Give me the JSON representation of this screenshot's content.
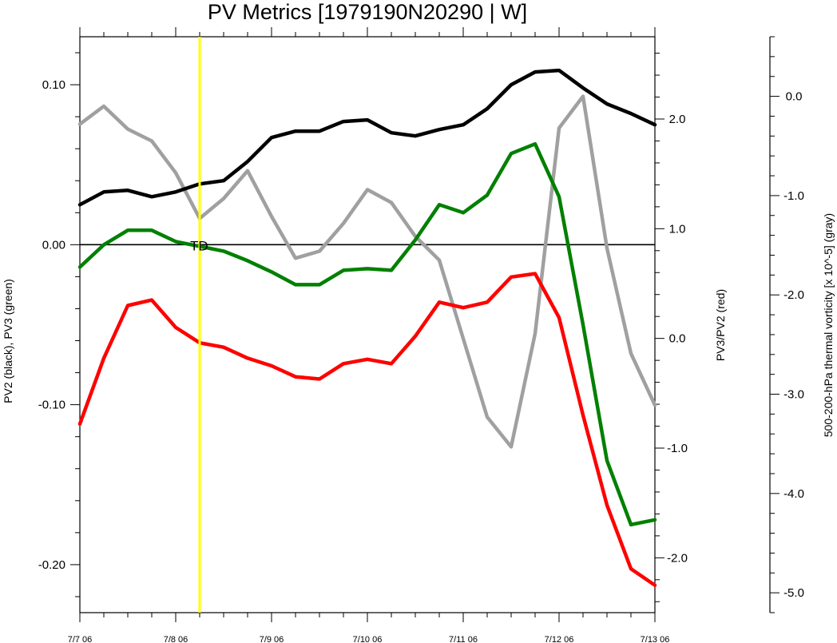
{
  "chart_data": {
    "type": "line",
    "title": "PV Metrics [1979190N20290 | W]",
    "x_tick_labels": [
      "7/7 06",
      "7/8 06",
      "7/9 06",
      "7/10 06",
      "7/11 06",
      "7/12 06",
      "7/13 06"
    ],
    "x_range_days": [
      0,
      6
    ],
    "y_left": {
      "label": "PV2 (black), PV3 (green)",
      "range": [
        -0.23,
        0.13
      ],
      "ticks": [
        0.1,
        0.0,
        -0.1,
        -0.2
      ],
      "tick_labels": [
        "0.10",
        "0.00",
        "-0.10",
        "-0.20"
      ]
    },
    "y_right": {
      "label": "PV3/PV2 (red)",
      "range": [
        -2.5,
        2.75
      ],
      "ticks": [
        2.0,
        1.0,
        0.0,
        -1.0,
        -2.0
      ],
      "tick_labels": [
        "2.0",
        "1.0",
        "0.0",
        "-1.0",
        "-2.0"
      ]
    },
    "y_far_right": {
      "label": "500-200-hPa thermal vorticity [x 10^-5] (gray)",
      "range": [
        -5.2,
        0.6
      ],
      "ticks": [
        0.0,
        -1.0,
        -2.0,
        -3.0,
        -4.0,
        -5.0
      ],
      "tick_labels": [
        "0.0",
        "-1.0",
        "-2.0",
        "-3.0",
        "-4.0",
        "-5.0"
      ]
    },
    "zero_line": 0.0,
    "marker": {
      "day": 1.25,
      "label": "TD",
      "color": "#ffff00"
    },
    "series": [
      {
        "name": "PV2",
        "axis": "y_left",
        "color": "#000000",
        "days": [
          0,
          0.25,
          0.5,
          0.75,
          1,
          1.25,
          1.5,
          1.75,
          2,
          2.25,
          2.5,
          2.75,
          3,
          3.25,
          3.5,
          3.75,
          4,
          4.25,
          4.5,
          4.75,
          5,
          5.25,
          5.5,
          5.75,
          6
        ],
        "values": [
          0.025,
          0.033,
          0.034,
          0.03,
          0.033,
          0.038,
          0.04,
          0.052,
          0.067,
          0.071,
          0.071,
          0.077,
          0.078,
          0.07,
          0.068,
          0.072,
          0.075,
          0.085,
          0.1,
          0.108,
          0.109,
          0.098,
          0.088,
          0.082,
          0.075
        ]
      },
      {
        "name": "PV3",
        "axis": "y_left",
        "color": "#008000",
        "days": [
          0,
          0.25,
          0.5,
          0.75,
          1,
          1.25,
          1.5,
          1.75,
          2,
          2.25,
          2.5,
          2.75,
          3,
          3.25,
          3.5,
          3.75,
          4,
          4.25,
          4.5,
          4.75,
          5,
          5.25,
          5.5,
          5.75,
          6
        ],
        "values": [
          -0.014,
          0.0,
          0.009,
          0.009,
          0.002,
          -0.001,
          -0.004,
          -0.01,
          -0.017,
          -0.025,
          -0.025,
          -0.016,
          -0.015,
          -0.016,
          0.003,
          0.025,
          0.02,
          0.031,
          0.057,
          0.063,
          0.03,
          -0.05,
          -0.135,
          -0.175,
          -0.172
        ]
      },
      {
        "name": "PV3/PV2",
        "axis": "y_right",
        "color": "#ff0000",
        "days": [
          0,
          0.25,
          0.5,
          0.75,
          1,
          1.25,
          1.5,
          1.75,
          2,
          2.25,
          2.5,
          2.75,
          3,
          3.25,
          3.5,
          3.75,
          4,
          4.25,
          4.5,
          4.75,
          5,
          5.25,
          5.5,
          5.75,
          6
        ],
        "values": [
          -0.78,
          -0.18,
          0.3,
          0.35,
          0.1,
          -0.04,
          -0.08,
          -0.18,
          -0.25,
          -0.35,
          -0.37,
          -0.23,
          -0.19,
          -0.23,
          0.02,
          0.33,
          0.28,
          0.33,
          0.56,
          0.59,
          0.19,
          -0.7,
          -1.52,
          -2.1,
          -2.25
        ]
      },
      {
        "name": "Thermal vorticity",
        "axis": "y_far_right",
        "color": "#a0a0a0",
        "days": [
          0,
          0.25,
          0.5,
          0.75,
          1,
          1.25,
          1.5,
          1.75,
          2,
          2.25,
          2.5,
          2.75,
          3,
          3.25,
          3.5,
          3.75,
          4,
          4.25,
          4.5,
          4.75,
          5,
          5.25,
          5.5,
          5.75,
          6
        ],
        "values": [
          -0.28,
          -0.1,
          -0.33,
          -0.45,
          -0.77,
          -1.23,
          -1.03,
          -0.75,
          -1.21,
          -1.63,
          -1.56,
          -1.28,
          -0.94,
          -1.07,
          -1.41,
          -1.65,
          -2.44,
          -3.23,
          -3.53,
          -2.39,
          -0.32,
          0.0,
          -1.53,
          -2.59,
          -3.11
        ]
      }
    ]
  }
}
